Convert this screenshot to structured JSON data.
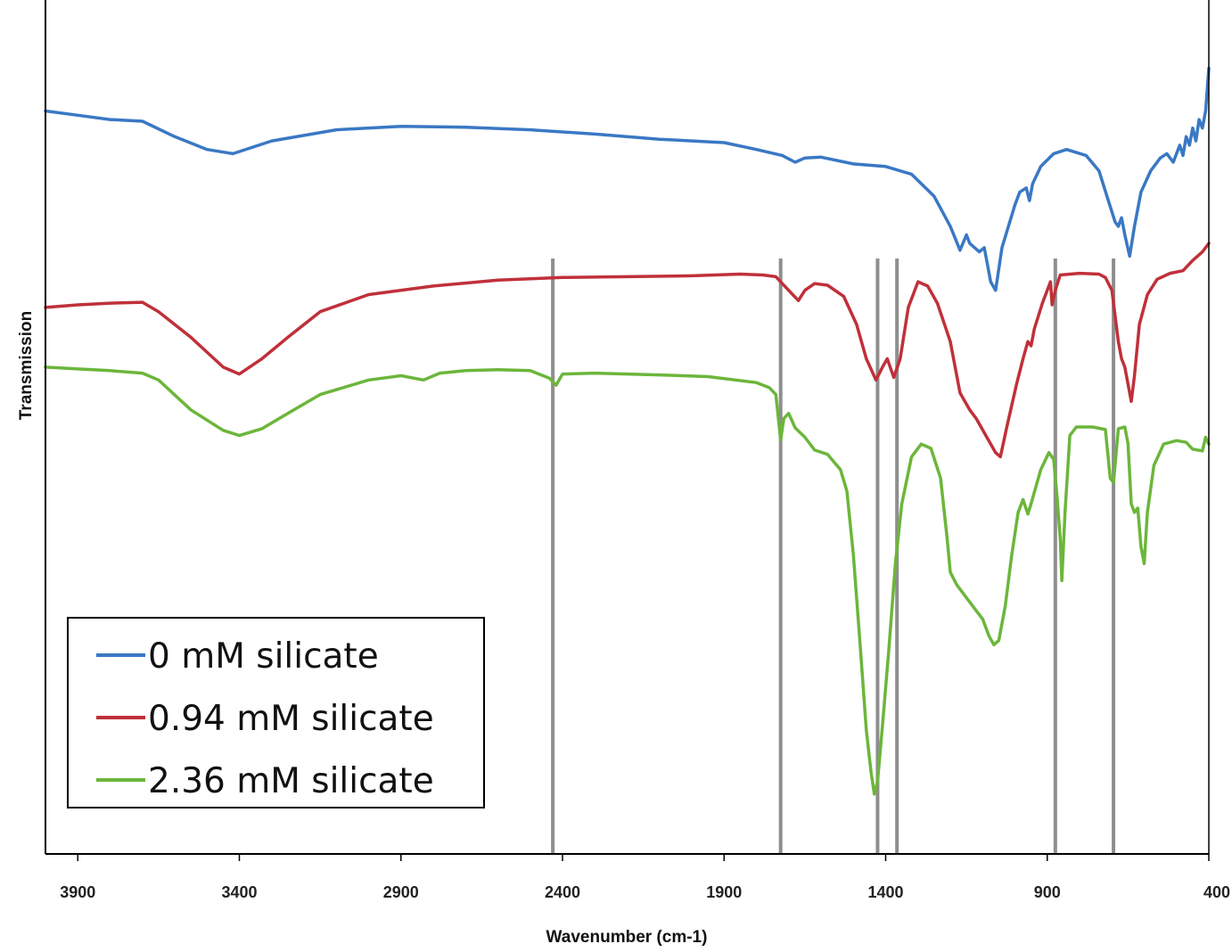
{
  "chart_data": {
    "type": "line",
    "title": "",
    "xlabel": "Wavenumber (cm-1)",
    "ylabel": "Transmission",
    "xlim": [
      4000,
      400
    ],
    "x_reversed": true,
    "ylim": [
      0,
      100
    ],
    "y_ticks_shown": false,
    "grid": false,
    "legend_position": "bottom-left",
    "x_ticks": [
      3900,
      3400,
      2900,
      2400,
      1900,
      1400,
      900,
      400
    ],
    "reference_lines": [
      2430,
      1725,
      1425,
      1365,
      875,
      695
    ],
    "series": [
      {
        "name": "0 mM silicate",
        "color": "#3a78c4",
        "points": [
          [
            4000,
            87
          ],
          [
            3900,
            86.5
          ],
          [
            3800,
            86
          ],
          [
            3700,
            85.8
          ],
          [
            3600,
            84
          ],
          [
            3500,
            82.5
          ],
          [
            3420,
            82
          ],
          [
            3300,
            83.5
          ],
          [
            3100,
            84.8
          ],
          [
            2900,
            85.2
          ],
          [
            2700,
            85.1
          ],
          [
            2500,
            84.8
          ],
          [
            2300,
            84.3
          ],
          [
            2100,
            83.7
          ],
          [
            1900,
            83.3
          ],
          [
            1800,
            82.5
          ],
          [
            1720,
            81.8
          ],
          [
            1680,
            81
          ],
          [
            1650,
            81.5
          ],
          [
            1600,
            81.6
          ],
          [
            1500,
            80.8
          ],
          [
            1400,
            80.5
          ],
          [
            1320,
            79.6
          ],
          [
            1250,
            77
          ],
          [
            1200,
            73.5
          ],
          [
            1170,
            70.7
          ],
          [
            1150,
            72.5
          ],
          [
            1140,
            71.5
          ],
          [
            1110,
            70.5
          ],
          [
            1095,
            71
          ],
          [
            1075,
            67
          ],
          [
            1060,
            66
          ],
          [
            1040,
            71
          ],
          [
            1000,
            76
          ],
          [
            985,
            77.5
          ],
          [
            965,
            78
          ],
          [
            955,
            76.5
          ],
          [
            945,
            78.5
          ],
          [
            920,
            80.5
          ],
          [
            880,
            82
          ],
          [
            840,
            82.5
          ],
          [
            780,
            81.8
          ],
          [
            740,
            80
          ],
          [
            715,
            77
          ],
          [
            690,
            74
          ],
          [
            680,
            73.5
          ],
          [
            670,
            74.5
          ],
          [
            660,
            72.5
          ],
          [
            645,
            70
          ],
          [
            630,
            73.5
          ],
          [
            610,
            77.5
          ],
          [
            580,
            80
          ],
          [
            550,
            81.5
          ],
          [
            530,
            82
          ],
          [
            510,
            81
          ],
          [
            490,
            83
          ],
          [
            480,
            81.8
          ],
          [
            470,
            84
          ],
          [
            460,
            83
          ],
          [
            450,
            85
          ],
          [
            440,
            83.5
          ],
          [
            430,
            86
          ],
          [
            420,
            85
          ],
          [
            410,
            87
          ],
          [
            400,
            92
          ]
        ]
      },
      {
        "name": "0.94 mM silicate",
        "color": "#c0303a",
        "points": [
          [
            4000,
            64
          ],
          [
            3900,
            64.3
          ],
          [
            3800,
            64.5
          ],
          [
            3700,
            64.6
          ],
          [
            3650,
            63.5
          ],
          [
            3550,
            60.5
          ],
          [
            3450,
            57
          ],
          [
            3400,
            56.2
          ],
          [
            3330,
            58
          ],
          [
            3250,
            60.5
          ],
          [
            3150,
            63.5
          ],
          [
            3000,
            65.5
          ],
          [
            2800,
            66.5
          ],
          [
            2600,
            67.2
          ],
          [
            2400,
            67.5
          ],
          [
            2200,
            67.6
          ],
          [
            2000,
            67.7
          ],
          [
            1850,
            67.9
          ],
          [
            1780,
            67.8
          ],
          [
            1740,
            67.6
          ],
          [
            1700,
            66
          ],
          [
            1670,
            64.8
          ],
          [
            1650,
            66
          ],
          [
            1620,
            66.8
          ],
          [
            1580,
            66.6
          ],
          [
            1530,
            65.3
          ],
          [
            1490,
            62
          ],
          [
            1460,
            58
          ],
          [
            1430,
            55.5
          ],
          [
            1410,
            57
          ],
          [
            1395,
            58
          ],
          [
            1375,
            55.8
          ],
          [
            1355,
            58
          ],
          [
            1330,
            64
          ],
          [
            1300,
            67
          ],
          [
            1270,
            66.5
          ],
          [
            1240,
            64.5
          ],
          [
            1200,
            60
          ],
          [
            1170,
            54
          ],
          [
            1140,
            52
          ],
          [
            1120,
            51
          ],
          [
            1090,
            49
          ],
          [
            1060,
            47
          ],
          [
            1045,
            46.5
          ],
          [
            1025,
            50
          ],
          [
            995,
            55
          ],
          [
            975,
            58
          ],
          [
            960,
            60
          ],
          [
            950,
            59.5
          ],
          [
            940,
            61.5
          ],
          [
            915,
            64.5
          ],
          [
            890,
            67
          ],
          [
            885,
            64.3
          ],
          [
            875,
            66
          ],
          [
            860,
            67.8
          ],
          [
            800,
            68
          ],
          [
            740,
            67.9
          ],
          [
            720,
            67.5
          ],
          [
            700,
            66
          ],
          [
            690,
            63
          ],
          [
            680,
            60
          ],
          [
            670,
            58
          ],
          [
            660,
            57
          ],
          [
            650,
            55
          ],
          [
            640,
            53
          ],
          [
            630,
            56
          ],
          [
            615,
            62
          ],
          [
            590,
            65.5
          ],
          [
            560,
            67.3
          ],
          [
            520,
            68
          ],
          [
            480,
            68.3
          ],
          [
            450,
            69.5
          ],
          [
            420,
            70.5
          ],
          [
            400,
            71.5
          ]
        ]
      },
      {
        "name": "2.36 mM silicate",
        "color": "#6cb63b",
        "points": [
          [
            4000,
            57
          ],
          [
            3900,
            56.8
          ],
          [
            3800,
            56.6
          ],
          [
            3700,
            56.3
          ],
          [
            3650,
            55.5
          ],
          [
            3550,
            52
          ],
          [
            3450,
            49.6
          ],
          [
            3400,
            49
          ],
          [
            3330,
            49.8
          ],
          [
            3250,
            51.6
          ],
          [
            3150,
            53.8
          ],
          [
            3000,
            55.5
          ],
          [
            2900,
            56
          ],
          [
            2830,
            55.5
          ],
          [
            2780,
            56.3
          ],
          [
            2700,
            56.6
          ],
          [
            2600,
            56.7
          ],
          [
            2500,
            56.6
          ],
          [
            2440,
            55.7
          ],
          [
            2420,
            54.9
          ],
          [
            2400,
            56.2
          ],
          [
            2300,
            56.3
          ],
          [
            2100,
            56.1
          ],
          [
            1950,
            55.9
          ],
          [
            1800,
            55.2
          ],
          [
            1760,
            54.6
          ],
          [
            1740,
            53.8
          ],
          [
            1725,
            48.5
          ],
          [
            1715,
            51
          ],
          [
            1700,
            51.6
          ],
          [
            1680,
            49.9
          ],
          [
            1650,
            48.8
          ],
          [
            1620,
            47.3
          ],
          [
            1580,
            46.8
          ],
          [
            1540,
            45
          ],
          [
            1520,
            42.5
          ],
          [
            1500,
            35
          ],
          [
            1480,
            25
          ],
          [
            1460,
            14.5
          ],
          [
            1445,
            9.5
          ],
          [
            1435,
            7
          ],
          [
            1425,
            8.5
          ],
          [
            1410,
            15
          ],
          [
            1390,
            24
          ],
          [
            1370,
            34
          ],
          [
            1350,
            41
          ],
          [
            1320,
            46.5
          ],
          [
            1290,
            48
          ],
          [
            1260,
            47.5
          ],
          [
            1230,
            44
          ],
          [
            1210,
            37
          ],
          [
            1200,
            33
          ],
          [
            1180,
            31.5
          ],
          [
            1150,
            30
          ],
          [
            1120,
            28.5
          ],
          [
            1100,
            27.5
          ],
          [
            1080,
            25.5
          ],
          [
            1065,
            24.5
          ],
          [
            1050,
            25
          ],
          [
            1030,
            29
          ],
          [
            1010,
            35
          ],
          [
            990,
            40
          ],
          [
            975,
            41.5
          ],
          [
            960,
            39.8
          ],
          [
            950,
            41
          ],
          [
            920,
            45
          ],
          [
            895,
            47
          ],
          [
            880,
            46.2
          ],
          [
            870,
            42
          ],
          [
            860,
            37
          ],
          [
            855,
            32
          ],
          [
            845,
            40
          ],
          [
            830,
            49
          ],
          [
            810,
            50
          ],
          [
            760,
            50
          ],
          [
            720,
            49.7
          ],
          [
            705,
            44
          ],
          [
            695,
            43.5
          ],
          [
            680,
            49.8
          ],
          [
            660,
            50
          ],
          [
            650,
            48
          ],
          [
            640,
            41
          ],
          [
            630,
            40
          ],
          [
            620,
            40.5
          ],
          [
            610,
            36
          ],
          [
            600,
            34
          ],
          [
            590,
            40
          ],
          [
            570,
            45.5
          ],
          [
            540,
            48
          ],
          [
            500,
            48.4
          ],
          [
            470,
            48.2
          ],
          [
            450,
            47.4
          ],
          [
            420,
            47.2
          ],
          [
            410,
            48.8
          ],
          [
            400,
            48
          ]
        ]
      }
    ]
  }
}
